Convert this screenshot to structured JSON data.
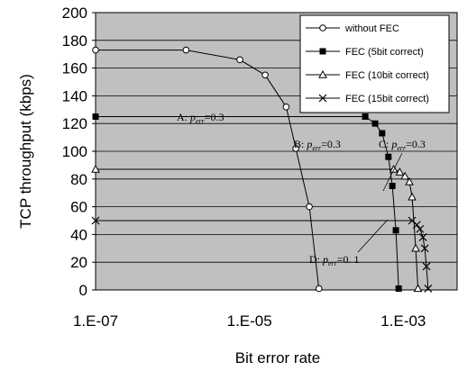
{
  "chart_data": {
    "type": "line",
    "xlabel": "Bit error rate",
    "ylabel": "TCP throughput (kbps)",
    "xscale": "log",
    "xlim": [
      1e-07,
      0.005
    ],
    "ylim": [
      0,
      200
    ],
    "xtick_values": [
      1e-07,
      1e-05,
      0.001
    ],
    "xtick_labels": [
      "1.E-07",
      "1.E-05",
      "1.E-03"
    ],
    "ytick_values": [
      0,
      20,
      40,
      60,
      80,
      100,
      120,
      140,
      160,
      180,
      200
    ],
    "ytick_labels": [
      "0",
      "20",
      "40",
      "60",
      "80",
      "100",
      "120",
      "140",
      "160",
      "180",
      "200"
    ],
    "grid": "horizontal",
    "background": "#c0c0c0",
    "legend_position": "top-right",
    "series": [
      {
        "name": "without FEC",
        "marker": "open-circle",
        "points": [
          [
            1e-07,
            173
          ],
          [
            1.5e-06,
            173
          ],
          [
            7.5e-06,
            166
          ],
          [
            1.6e-05,
            155
          ],
          [
            3e-05,
            132
          ],
          [
            4e-05,
            102
          ],
          [
            6e-05,
            60
          ],
          [
            8e-05,
            1
          ]
        ]
      },
      {
        "name": "FEC (5bit correct)",
        "marker": "filled-square",
        "points": [
          [
            1e-07,
            125
          ],
          [
            0.00032,
            125
          ],
          [
            0.00043,
            120
          ],
          [
            0.00053,
            113
          ],
          [
            0.00064,
            96
          ],
          [
            0.00072,
            75
          ],
          [
            0.0008,
            43
          ],
          [
            0.00087,
            1
          ]
        ]
      },
      {
        "name": "FEC (10bit correct)",
        "marker": "open-triangle",
        "points": [
          [
            1e-07,
            87
          ],
          [
            0.00075,
            87
          ],
          [
            0.0009,
            85
          ],
          [
            0.00105,
            82
          ],
          [
            0.0012,
            78
          ],
          [
            0.0013,
            67
          ],
          [
            0.00145,
            30
          ],
          [
            0.00155,
            1
          ]
        ]
      },
      {
        "name": "FEC (15bit correct)",
        "marker": "x-cross",
        "points": [
          [
            1e-07,
            50
          ],
          [
            0.0013,
            50
          ],
          [
            0.0015,
            47
          ],
          [
            0.00165,
            44
          ],
          [
            0.0018,
            38
          ],
          [
            0.0019,
            30
          ],
          [
            0.002,
            17
          ],
          [
            0.0021,
            1
          ]
        ]
      }
    ],
    "annotations": [
      {
        "label": "A:",
        "sub": "err",
        "value": "=0.3"
      },
      {
        "label": "B:",
        "sub": "err",
        "value": "=0.3"
      },
      {
        "label": "C:",
        "sub": "err",
        "value": "=0.3"
      },
      {
        "label": "D:",
        "sub": "err",
        "value": "=0. 1"
      }
    ]
  }
}
